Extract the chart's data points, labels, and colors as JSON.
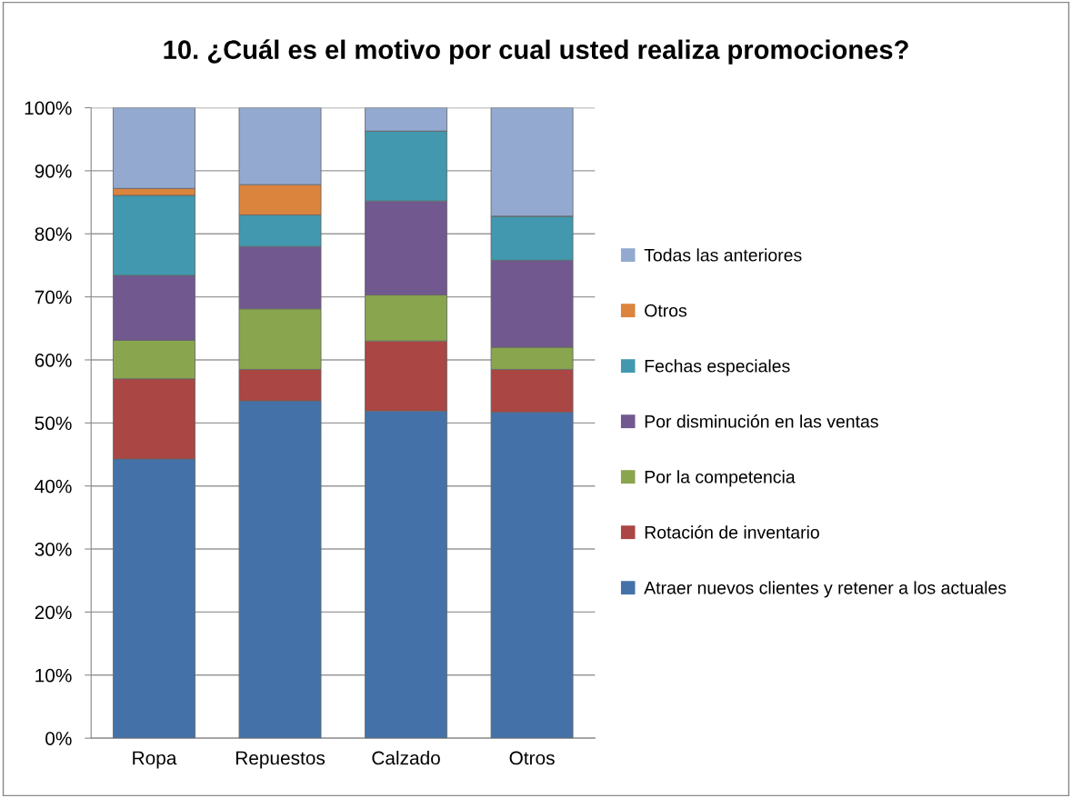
{
  "chart_data": {
    "type": "bar",
    "title": "10. ¿Cuál es el motivo por cual usted realiza promociones?",
    "categories": [
      "Ropa",
      "Repuestos",
      "Calzado",
      "Otros"
    ],
    "stacked": true,
    "series": [
      {
        "name": "Atraer nuevos clientes y retener a los actuales",
        "color": "#4472a8",
        "values": [
          44.3,
          53.5,
          51.9,
          51.7
        ]
      },
      {
        "name": "Rotación de inventario",
        "color": "#aa4643",
        "values": [
          12.7,
          5.0,
          11.1,
          6.8
        ]
      },
      {
        "name": "Por la competencia",
        "color": "#89a54e",
        "values": [
          6.1,
          9.6,
          7.3,
          3.5
        ]
      },
      {
        "name": "Por disminución en las ventas",
        "color": "#71588f",
        "values": [
          10.3,
          9.9,
          14.9,
          13.8
        ]
      },
      {
        "name": "Fechas especiales",
        "color": "#4198af",
        "values": [
          12.7,
          5.0,
          11.1,
          7.0
        ]
      },
      {
        "name": "Otros",
        "color": "#db843d",
        "values": [
          1.1,
          4.8,
          0,
          0
        ]
      },
      {
        "name": "Todas las anteriores",
        "color": "#93a9cf",
        "values": [
          12.8,
          12.2,
          3.7,
          17.2
        ]
      }
    ],
    "ylim": [
      0,
      100
    ],
    "yticks": [
      {
        "value": 0,
        "label": "0%"
      },
      {
        "value": 10,
        "label": "10%"
      },
      {
        "value": 20,
        "label": "20%"
      },
      {
        "value": 30,
        "label": "30%"
      },
      {
        "value": 40,
        "label": "40%"
      },
      {
        "value": 50,
        "label": "50%"
      },
      {
        "value": 60,
        "label": "60%"
      },
      {
        "value": 70,
        "label": "70%"
      },
      {
        "value": 80,
        "label": "80%"
      },
      {
        "value": 90,
        "label": "90%"
      },
      {
        "value": 100,
        "label": "100%"
      }
    ],
    "grid": "y",
    "legend": "right"
  }
}
